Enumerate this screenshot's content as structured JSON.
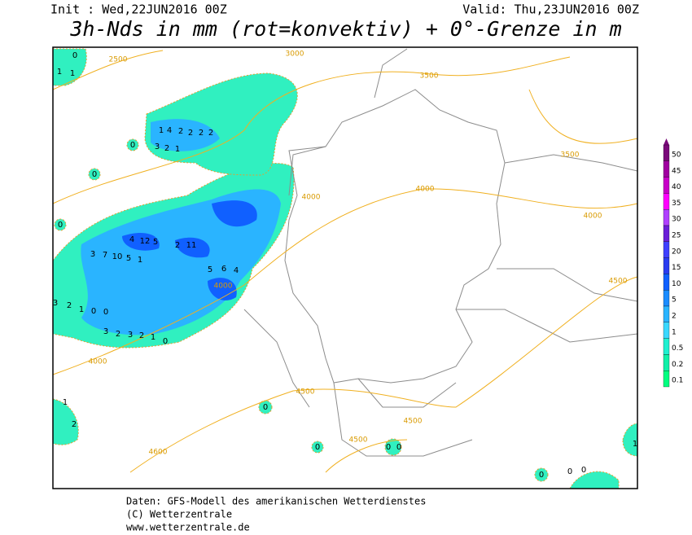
{
  "header": {
    "init": "Init : Wed,22JUN2016 00Z",
    "valid": "Valid: Thu,23JUN2016 00Z",
    "title": "3h-Nds in mm (rot=konvektiv) + 0°-Grenze in m"
  },
  "legend": {
    "levels": [
      50,
      45,
      40,
      35,
      30,
      25,
      20,
      15,
      10,
      5,
      2,
      1,
      0.5,
      0.2,
      0.1
    ],
    "colors": [
      "#7a0a7a",
      "#a000a0",
      "#c800c8",
      "#ff00ff",
      "#b040ff",
      "#6a1fd8",
      "#4040ff",
      "#2a3cf0",
      "#1060ff",
      "#1b8cff",
      "#2ab4ff",
      "#3ad8ff",
      "#20f0d0",
      "#10f0a8",
      "#00ff80"
    ]
  },
  "contour_labels": [
    2500,
    3000,
    3500,
    3500,
    4000,
    4000,
    4000,
    4000,
    4000,
    4500,
    4500,
    4500,
    4500,
    4600
  ],
  "precip_labels": [
    1,
    0,
    1,
    0,
    3,
    2,
    1,
    1,
    4,
    2,
    2,
    2,
    2,
    0,
    0,
    3,
    7,
    10,
    5,
    1,
    4,
    12,
    5,
    2,
    11,
    5,
    6,
    4,
    3,
    2,
    3,
    2,
    1,
    0,
    1,
    2,
    0,
    0,
    0,
    0,
    0,
    0,
    0,
    1,
    3,
    2,
    1,
    0,
    0
  ],
  "footer": {
    "line1": "Daten: GFS-Modell des amerikanischen Wetterdienstes",
    "line2": "(C) Wetterzentrale",
    "line3": "www.wetterzentrale.de"
  }
}
